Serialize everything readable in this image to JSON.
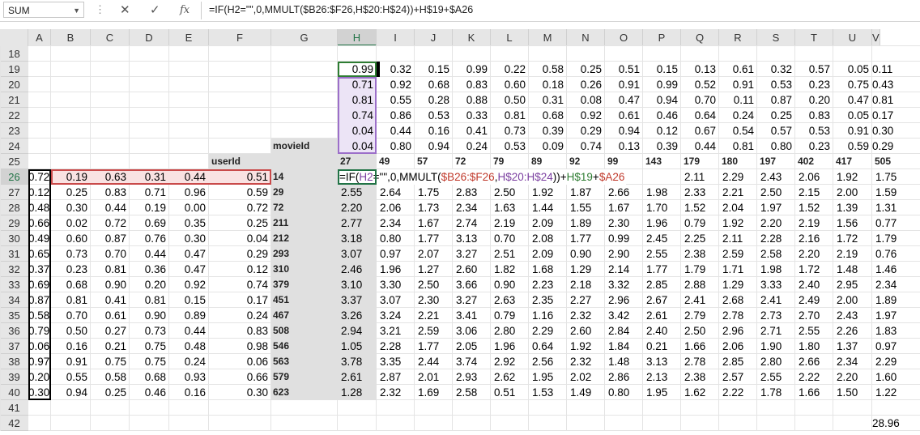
{
  "formula_bar": {
    "name_box": "SUM",
    "cancel_icon": "✕",
    "enter_icon": "✓",
    "fx_label": "fx",
    "formula": "=IF(H2=\"\",0,MMULT($B26:$F26,H$20:H$24))+H$19+$A26"
  },
  "columns": [
    "A",
    "B",
    "C",
    "D",
    "E",
    "F",
    "G",
    "H",
    "I",
    "J",
    "K",
    "L",
    "M",
    "N",
    "O",
    "P",
    "Q",
    "R",
    "S",
    "T",
    "U",
    "V"
  ],
  "rows": [
    "18",
    "19",
    "20",
    "21",
    "22",
    "23",
    "24",
    "25",
    "26",
    "27",
    "28",
    "29",
    "30",
    "31",
    "32",
    "33",
    "34",
    "35",
    "36",
    "37",
    "38",
    "39",
    "40",
    "41",
    "42"
  ],
  "labels": {
    "userId": "userId",
    "movieId": "movieId"
  },
  "movie_factors": [
    [
      "0.99",
      "0.32",
      "0.15",
      "0.99",
      "0.22",
      "0.58",
      "0.25",
      "0.51",
      "0.15",
      "0.13",
      "0.61",
      "0.32",
      "0.57",
      "0.05",
      "0.11"
    ],
    [
      "0.71",
      "0.92",
      "0.68",
      "0.83",
      "0.60",
      "0.18",
      "0.26",
      "0.91",
      "0.99",
      "0.52",
      "0.91",
      "0.53",
      "0.23",
      "0.75",
      "0.43"
    ],
    [
      "0.81",
      "0.55",
      "0.28",
      "0.88",
      "0.50",
      "0.31",
      "0.08",
      "0.47",
      "0.94",
      "0.70",
      "0.11",
      "0.87",
      "0.20",
      "0.47",
      "0.81"
    ],
    [
      "0.74",
      "0.86",
      "0.53",
      "0.33",
      "0.81",
      "0.68",
      "0.92",
      "0.61",
      "0.46",
      "0.64",
      "0.24",
      "0.25",
      "0.83",
      "0.05",
      "0.17"
    ],
    [
      "0.04",
      "0.44",
      "0.16",
      "0.41",
      "0.73",
      "0.39",
      "0.29",
      "0.94",
      "0.12",
      "0.67",
      "0.54",
      "0.57",
      "0.53",
      "0.91",
      "0.30"
    ],
    [
      "0.04",
      "0.80",
      "0.94",
      "0.24",
      "0.53",
      "0.09",
      "0.74",
      "0.13",
      "0.39",
      "0.44",
      "0.81",
      "0.80",
      "0.23",
      "0.59",
      "0.29"
    ]
  ],
  "movie_ids": [
    "27",
    "49",
    "57",
    "72",
    "79",
    "89",
    "92",
    "99",
    "143",
    "179",
    "180",
    "197",
    "402",
    "417",
    "505"
  ],
  "user_ids": [
    "14",
    "29",
    "72",
    "211",
    "212",
    "293",
    "310",
    "379",
    "451",
    "467",
    "508",
    "546",
    "563",
    "579",
    "623"
  ],
  "user_factors": [
    [
      "0.72",
      "0.19",
      "0.63",
      "0.31",
      "0.44",
      "0.51"
    ],
    [
      "0.12",
      "0.25",
      "0.83",
      "0.71",
      "0.96",
      "0.59"
    ],
    [
      "0.48",
      "0.30",
      "0.44",
      "0.19",
      "0.00",
      "0.72"
    ],
    [
      "0.66",
      "0.02",
      "0.72",
      "0.69",
      "0.35",
      "0.25"
    ],
    [
      "0.49",
      "0.60",
      "0.87",
      "0.76",
      "0.30",
      "0.04"
    ],
    [
      "0.65",
      "0.73",
      "0.70",
      "0.44",
      "0.47",
      "0.29"
    ],
    [
      "0.37",
      "0.23",
      "0.81",
      "0.36",
      "0.47",
      "0.12"
    ],
    [
      "0.69",
      "0.68",
      "0.90",
      "0.20",
      "0.92",
      "0.74"
    ],
    [
      "0.87",
      "0.81",
      "0.41",
      "0.81",
      "0.15",
      "0.17"
    ],
    [
      "0.58",
      "0.70",
      "0.61",
      "0.90",
      "0.89",
      "0.24"
    ],
    [
      "0.79",
      "0.50",
      "0.27",
      "0.73",
      "0.44",
      "0.83"
    ],
    [
      "0.06",
      "0.16",
      "0.21",
      "0.75",
      "0.48",
      "0.98"
    ],
    [
      "0.97",
      "0.91",
      "0.75",
      "0.75",
      "0.24",
      "0.06"
    ],
    [
      "0.20",
      "0.55",
      "0.58",
      "0.68",
      "0.93",
      "0.66"
    ],
    [
      "0.30",
      "0.94",
      "0.25",
      "0.46",
      "0.16",
      "0.30"
    ]
  ],
  "predictions": [
    [
      "",
      "",
      "",
      "",
      "",
      "",
      "",
      "",
      "",
      "2.11",
      "2.29",
      "2.43",
      "2.06",
      "1.92",
      "1.75"
    ],
    [
      "2.55",
      "2.64",
      "1.75",
      "2.83",
      "2.50",
      "1.92",
      "1.87",
      "2.66",
      "1.98",
      "2.33",
      "2.21",
      "2.50",
      "2.15",
      "2.00",
      "1.59"
    ],
    [
      "2.20",
      "2.06",
      "1.73",
      "2.34",
      "1.63",
      "1.44",
      "1.55",
      "1.67",
      "1.70",
      "1.52",
      "2.04",
      "1.97",
      "1.52",
      "1.39",
      "1.31"
    ],
    [
      "2.77",
      "2.34",
      "1.67",
      "2.74",
      "2.19",
      "2.09",
      "1.89",
      "2.30",
      "1.96",
      "0.79",
      "1.92",
      "2.20",
      "2.19",
      "1.56",
      "0.77"
    ],
    [
      "3.18",
      "0.80",
      "1.77",
      "3.13",
      "0.70",
      "2.08",
      "1.77",
      "0.99",
      "2.45",
      "2.25",
      "2.11",
      "2.28",
      "2.16",
      "1.72",
      "1.79"
    ],
    [
      "3.07",
      "0.97",
      "2.07",
      "3.27",
      "2.51",
      "2.09",
      "0.90",
      "2.90",
      "2.55",
      "2.38",
      "2.59",
      "2.58",
      "2.20",
      "2.19",
      "0.76"
    ],
    [
      "2.46",
      "1.96",
      "1.27",
      "2.60",
      "1.82",
      "1.68",
      "1.29",
      "2.14",
      "1.77",
      "1.79",
      "1.71",
      "1.98",
      "1.72",
      "1.48",
      "1.46"
    ],
    [
      "3.10",
      "3.30",
      "2.50",
      "3.66",
      "0.90",
      "2.23",
      "2.18",
      "3.32",
      "2.85",
      "2.88",
      "1.29",
      "3.33",
      "2.40",
      "2.95",
      "2.34"
    ],
    [
      "3.37",
      "3.07",
      "2.30",
      "3.27",
      "2.63",
      "2.35",
      "2.27",
      "2.96",
      "2.67",
      "2.41",
      "2.68",
      "2.41",
      "2.49",
      "2.00",
      "1.89"
    ],
    [
      "3.26",
      "3.24",
      "2.21",
      "3.41",
      "0.79",
      "1.16",
      "2.32",
      "3.42",
      "2.61",
      "2.79",
      "2.78",
      "2.73",
      "2.70",
      "2.43",
      "1.97"
    ],
    [
      "2.94",
      "3.21",
      "2.59",
      "3.06",
      "2.80",
      "2.29",
      "2.60",
      "2.84",
      "2.40",
      "2.50",
      "2.96",
      "2.71",
      "2.55",
      "2.26",
      "1.83"
    ],
    [
      "1.05",
      "2.28",
      "1.77",
      "2.05",
      "1.96",
      "0.64",
      "1.92",
      "1.84",
      "0.21",
      "1.66",
      "2.06",
      "1.90",
      "1.80",
      "1.37",
      "0.97"
    ],
    [
      "3.78",
      "3.35",
      "2.44",
      "3.74",
      "2.92",
      "2.56",
      "2.32",
      "1.48",
      "3.13",
      "2.78",
      "2.85",
      "2.80",
      "2.66",
      "2.34",
      "2.29"
    ],
    [
      "2.61",
      "2.87",
      "2.01",
      "2.93",
      "2.62",
      "1.95",
      "2.02",
      "2.86",
      "2.13",
      "2.38",
      "2.57",
      "2.55",
      "2.22",
      "2.20",
      "1.60"
    ],
    [
      "1.28",
      "2.32",
      "1.69",
      "2.58",
      "0.51",
      "1.53",
      "1.49",
      "0.80",
      "1.95",
      "1.62",
      "2.22",
      "1.78",
      "1.66",
      "1.50",
      "1.22"
    ]
  ],
  "editing_cell": {
    "p1": "=IF(",
    "p2": "H2",
    "p3": "=\"\",0,MMULT(",
    "p4": "$B26:$F26",
    "p5": ",",
    "p6": "H$20:H$24",
    "p7": "))+",
    "p8": "H$19",
    "p9": "+",
    "p10": "$A26"
  },
  "total": "28.96"
}
